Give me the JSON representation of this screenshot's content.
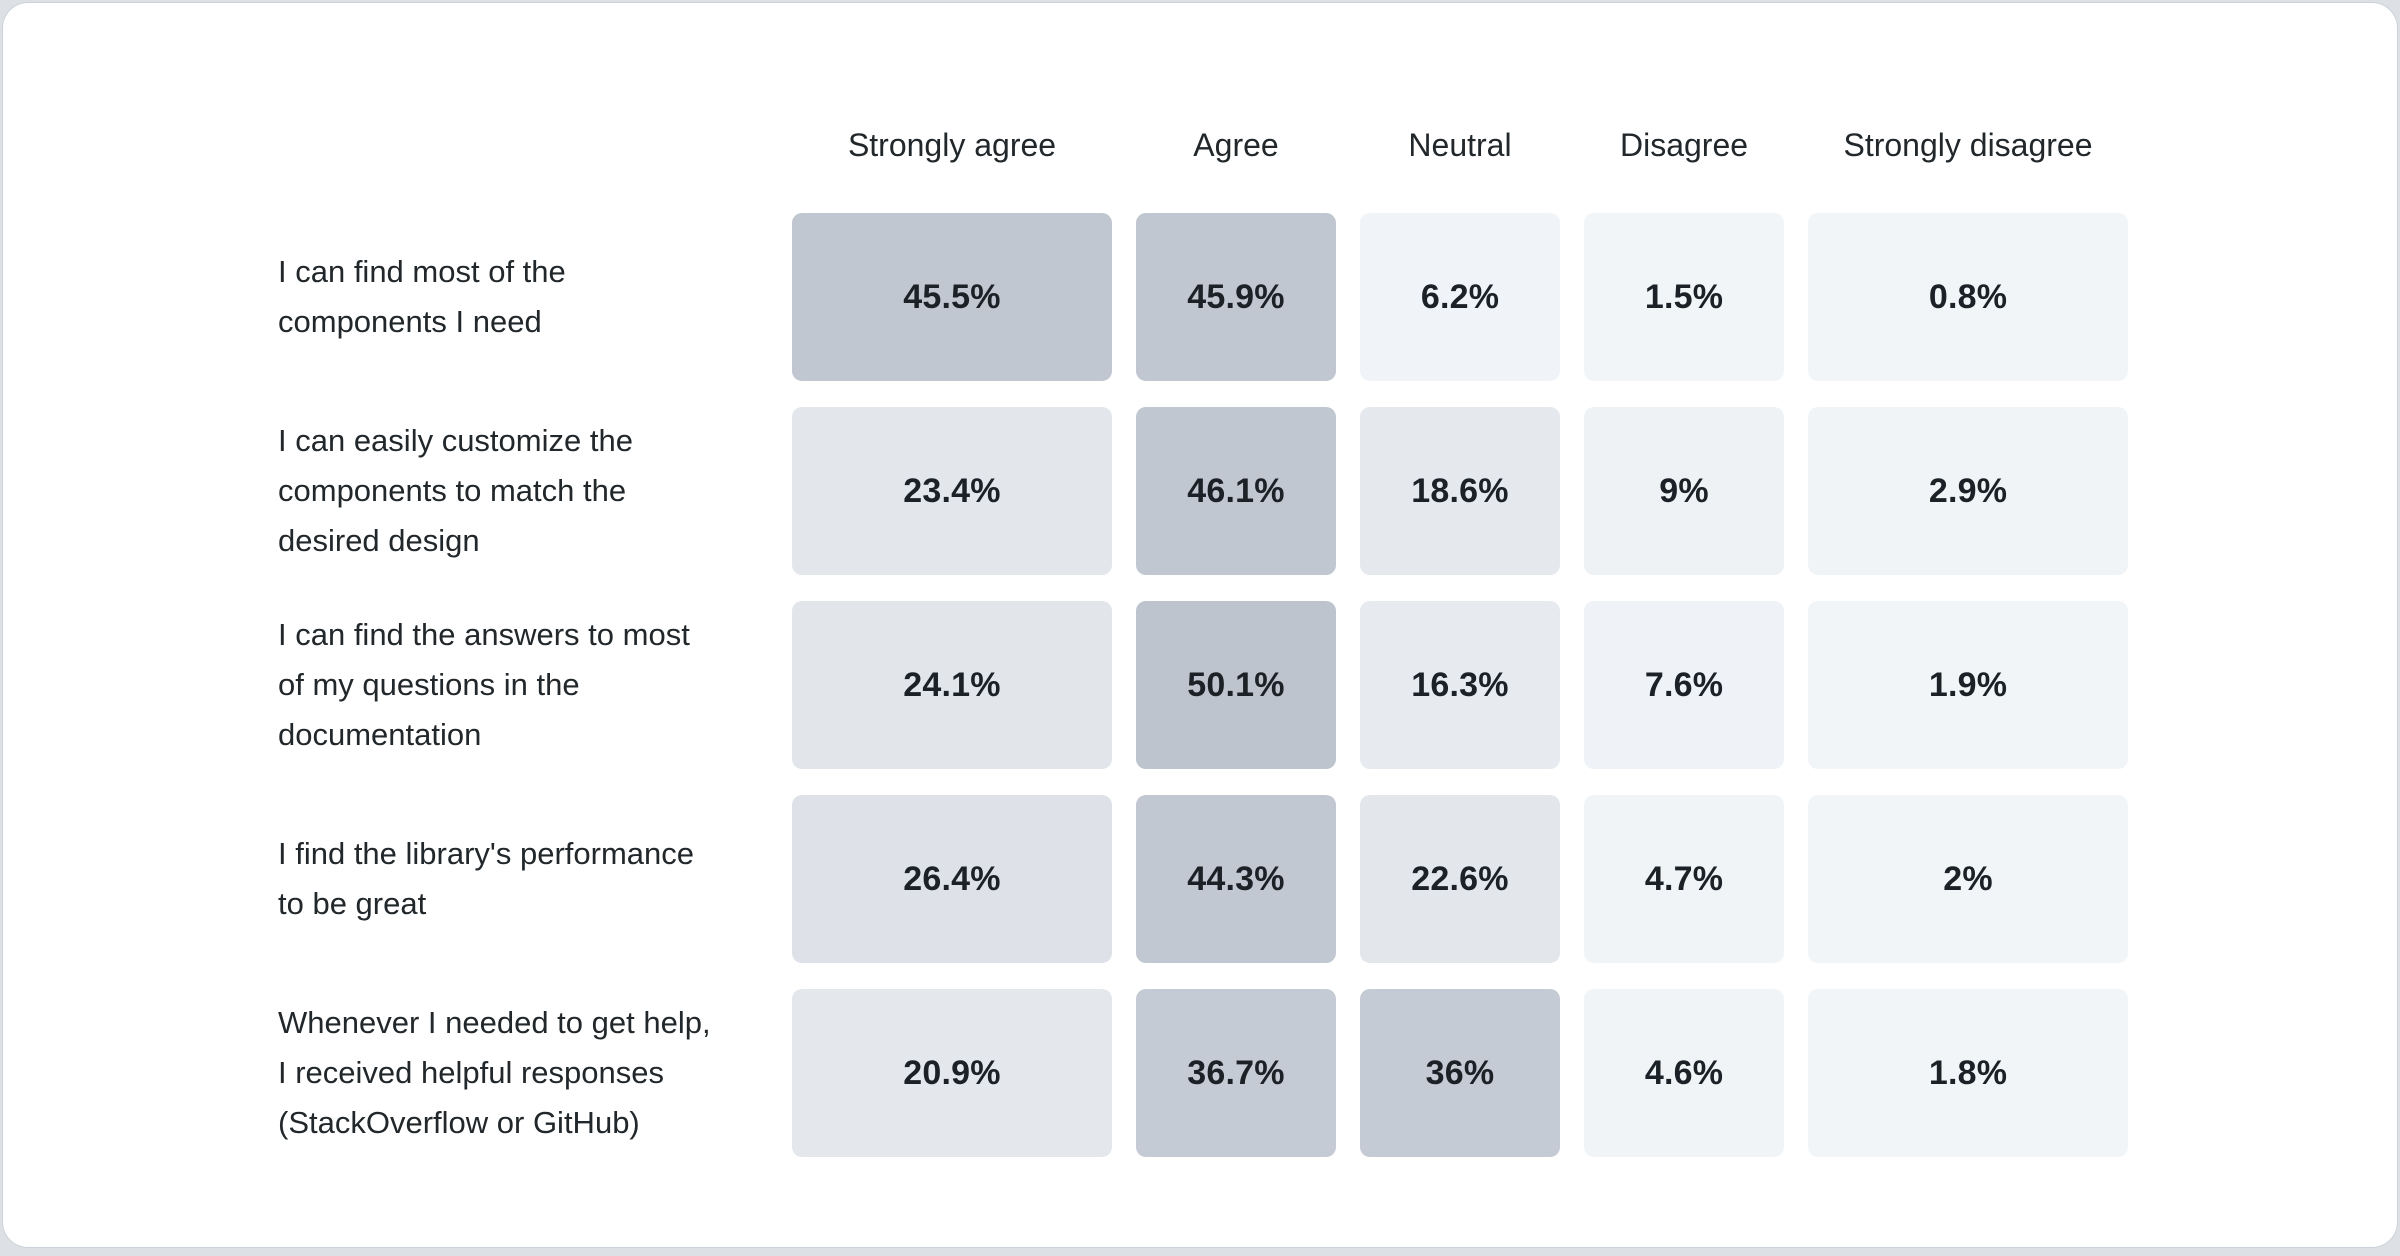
{
  "page": {
    "background_color": "#dde1e6",
    "card_background_color": "#ffffff",
    "card_border_color": "#ccd2d9"
  },
  "chart_data": {
    "type": "heatmap",
    "title": "",
    "legend_position": "none",
    "grid": false,
    "columns": [
      {
        "id": "strongly-agree",
        "label": "Strongly agree"
      },
      {
        "id": "agree",
        "label": "Agree"
      },
      {
        "id": "neutral",
        "label": "Neutral"
      },
      {
        "id": "disagree",
        "label": "Disagree"
      },
      {
        "id": "strongly-disagree",
        "label": "Strongly disagree"
      }
    ],
    "rows": [
      {
        "label": "I can find most of the components I need",
        "label_lines": [
          "I can find most of the",
          "components I need"
        ],
        "values": [
          45.5,
          45.9,
          6.2,
          1.5,
          0.8
        ],
        "display_values": [
          "45.5%",
          "45.9%",
          "6.2%",
          "1.5%",
          "0.8%"
        ]
      },
      {
        "label": "I can easily customize the components to match the desired design",
        "label_lines": [
          "I can easily customize the",
          "components to match the",
          "desired design"
        ],
        "values": [
          23.4,
          46.1,
          18.6,
          9,
          2.9
        ],
        "display_values": [
          "23.4%",
          "46.1%",
          "18.6%",
          "9%",
          "2.9%"
        ]
      },
      {
        "label": "I can find the answers to most of my questions in the documentation",
        "label_lines": [
          "I can find the answers to most",
          "of my questions in the",
          "documentation"
        ],
        "values": [
          24.1,
          50.1,
          16.3,
          7.6,
          1.9
        ],
        "display_values": [
          "24.1%",
          "50.1%",
          "16.3%",
          "7.6%",
          "1.9%"
        ]
      },
      {
        "label": "I find the library's performance to be great",
        "label_lines": [
          "I find the library's performance",
          "to be great"
        ],
        "values": [
          26.4,
          44.3,
          22.6,
          4.7,
          2
        ],
        "display_values": [
          "26.4%",
          "44.3%",
          "22.6%",
          "4.7%",
          "2%"
        ]
      },
      {
        "label": "Whenever I needed to get help, I received helpful responses (StackOverflow or GitHub)",
        "label_lines": [
          "Whenever I needed to get help,",
          "I received helpful responses",
          "(StackOverflow or GitHub)"
        ],
        "values": [
          20.9,
          36.7,
          36,
          4.6,
          1.8
        ],
        "display_values": [
          "20.9%",
          "36.7%",
          "36%",
          "4.6%",
          "1.8%"
        ]
      }
    ],
    "value_unit": "%",
    "value_range": [
      0,
      50.1
    ],
    "color_scale_anchors": [
      [
        0,
        "#f2f5f8"
      ],
      [
        5,
        "#f1f4f7"
      ],
      [
        10,
        "#eef1f5"
      ],
      [
        17,
        "#e6e9ee"
      ],
      [
        25,
        "#e2e6eb"
      ],
      [
        30,
        "#d4d9e0"
      ],
      [
        36,
        "#c5cbd4"
      ],
      [
        44,
        "#c2c8d1"
      ],
      [
        50,
        "#bdc4cd"
      ]
    ],
    "cell_text_color": "#1b2126",
    "header_text_color": "#21272a",
    "row_label_text_color": "#21272a"
  }
}
